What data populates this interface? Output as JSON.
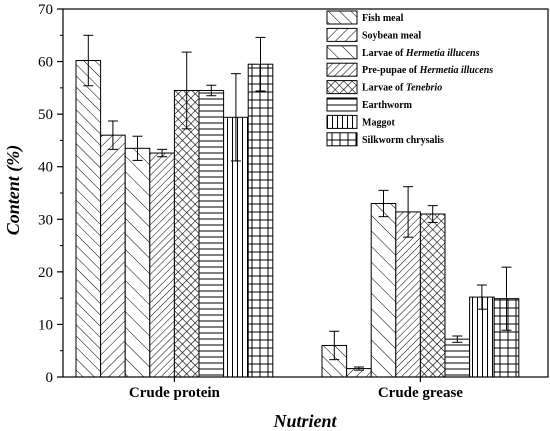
{
  "chart_data": {
    "type": "bar",
    "xlabel": "Nutrient",
    "ylabel": "Content (%)",
    "ylim": [
      0,
      70
    ],
    "yticks": [
      0,
      10,
      20,
      30,
      40,
      50,
      60,
      70
    ],
    "categories": [
      "Crude protein",
      "Crude grease"
    ],
    "legend_position": "top-right",
    "error_bars": true,
    "series": [
      {
        "name": "Fish meal",
        "pattern": "diag-right",
        "values": [
          60.2,
          6.0
        ],
        "errors": [
          4.8,
          2.7
        ]
      },
      {
        "name": "Soybean meal",
        "pattern": "diag-left",
        "values": [
          46.0,
          1.6
        ],
        "errors": [
          2.7,
          0.3
        ]
      },
      {
        "name": "Larvae of Hermetia illucens",
        "name_parts": [
          "Larvae of ",
          "Hermetia illucens"
        ],
        "pattern": "diag-right-wide",
        "values": [
          43.5,
          33.0
        ],
        "errors": [
          2.3,
          2.5
        ]
      },
      {
        "name": "Pre-pupae of Hermetia illucens",
        "name_parts": [
          "Pre-pupae of ",
          "Hermetia illucens"
        ],
        "pattern": "diag-left-dense",
        "values": [
          42.6,
          31.4
        ],
        "errors": [
          0.7,
          4.8
        ]
      },
      {
        "name": "Larvae of Tenebrio",
        "name_parts": [
          "Larvae of ",
          "Tenebrio"
        ],
        "pattern": "crosshatch",
        "values": [
          54.5,
          31.0
        ],
        "errors": [
          7.3,
          1.6
        ]
      },
      {
        "name": "Earthworm",
        "pattern": "horizontal",
        "values": [
          54.5,
          7.2
        ],
        "errors": [
          1.0,
          0.6
        ]
      },
      {
        "name": "Maggot",
        "pattern": "vertical",
        "values": [
          49.4,
          15.2
        ],
        "errors": [
          8.3,
          2.3
        ]
      },
      {
        "name": "Silkworm chrysalis",
        "pattern": "grid",
        "values": [
          59.5,
          14.9
        ],
        "errors": [
          5.1,
          6.0
        ]
      }
    ]
  }
}
